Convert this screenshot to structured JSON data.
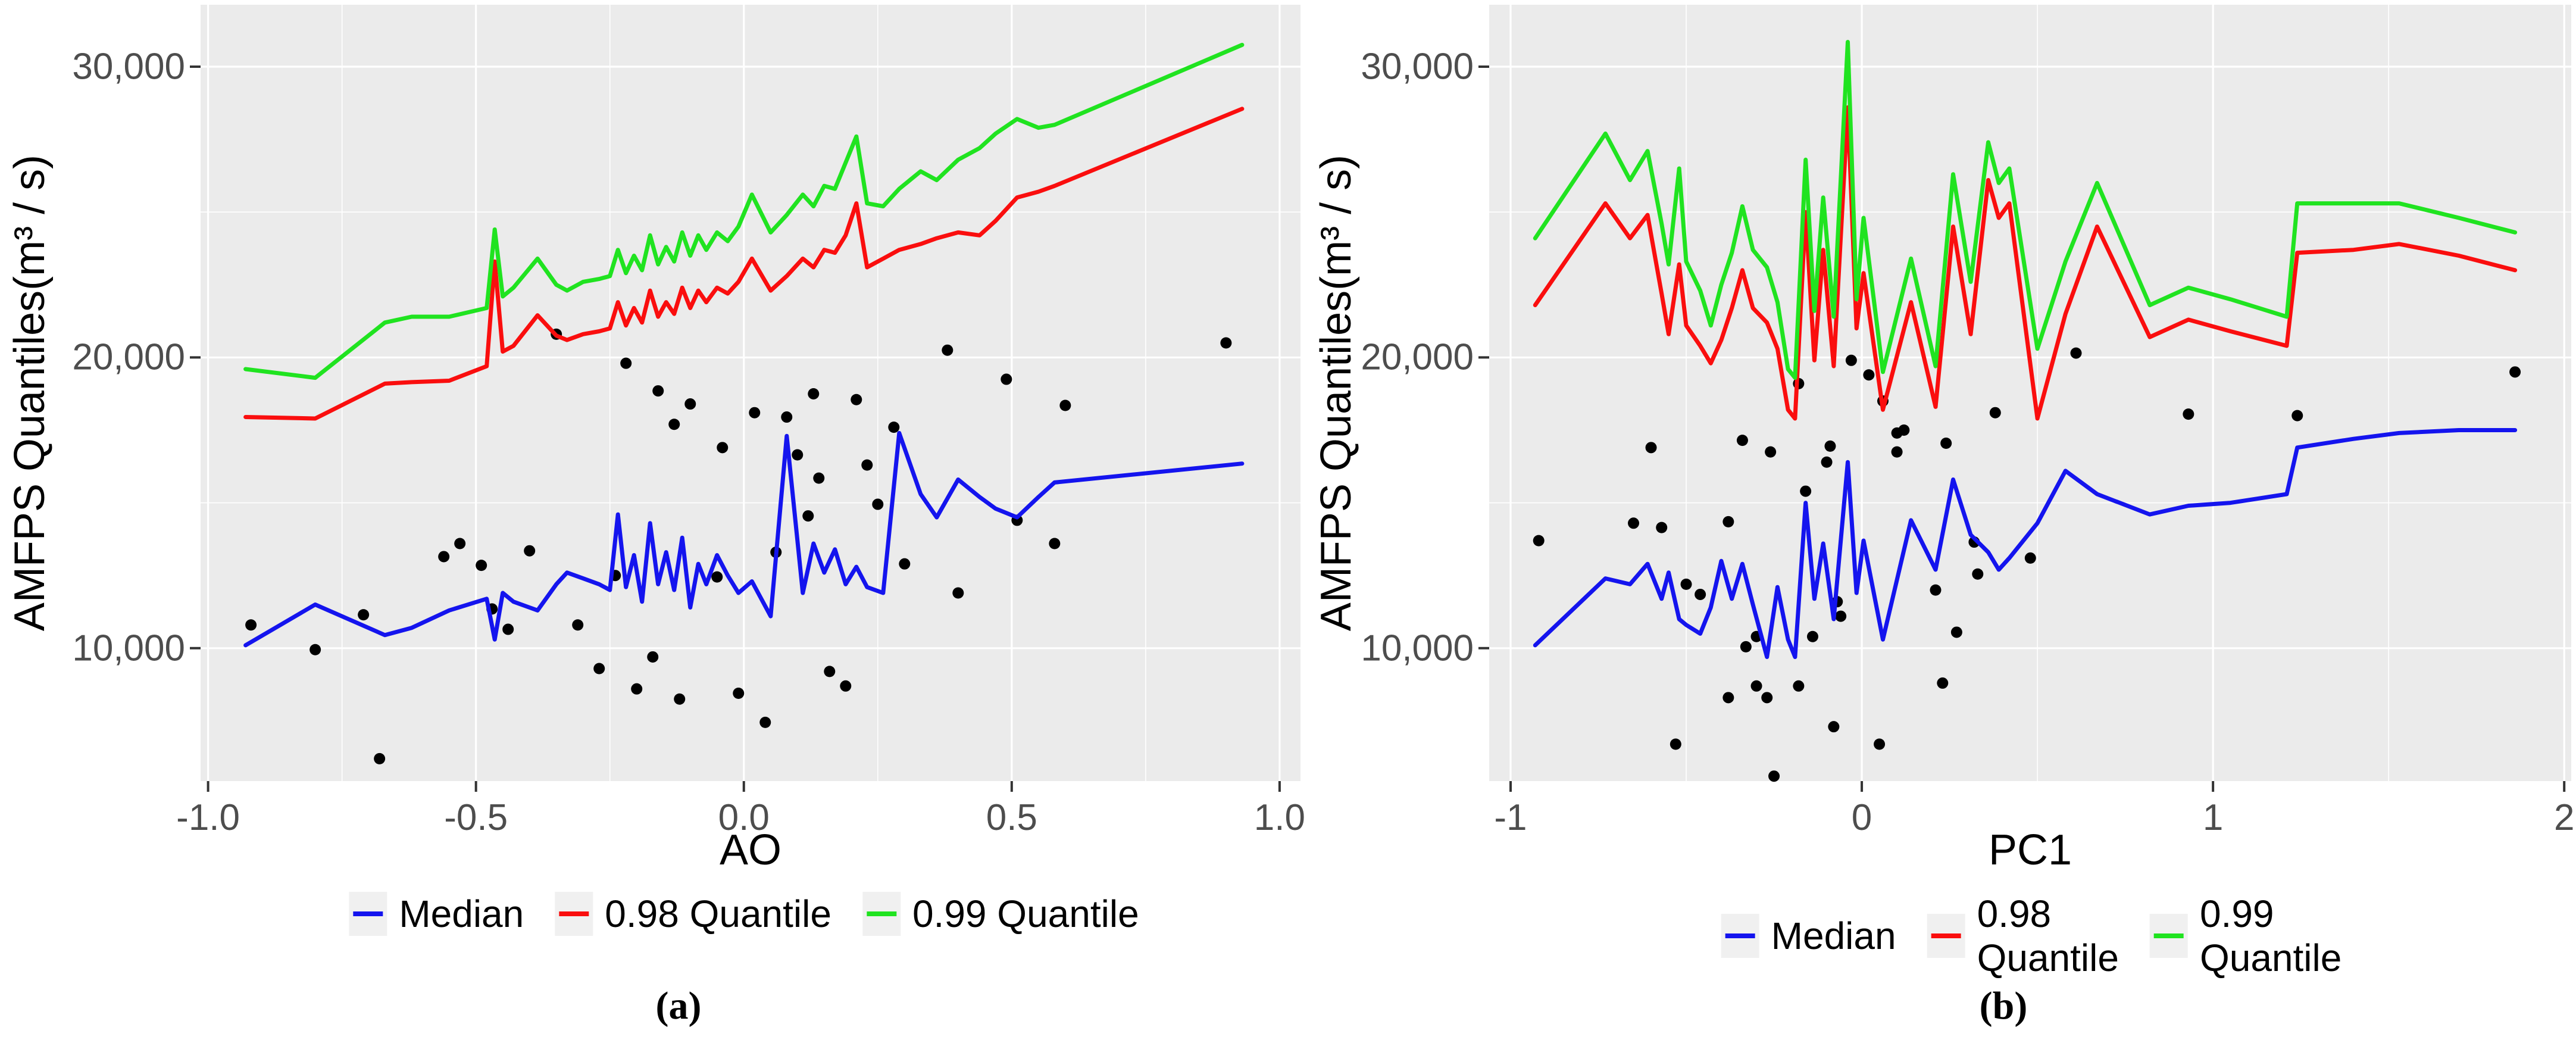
{
  "figure": {
    "panel_bg": "#ebebeb",
    "grid_color": "#ffffff",
    "tick_color": "#333333",
    "tick_label_color": "#4d4d4d",
    "point_color": "#000000",
    "ylabel": "AMFPS Quantiles(m³ / s)"
  },
  "legend": {
    "items": [
      {
        "label": "Median",
        "color": "#1414ee"
      },
      {
        "label": "0.98 Quantile",
        "color": "#fa0e0e"
      },
      {
        "label": "0.99 Quantile",
        "color": "#20e320"
      }
    ]
  },
  "panel_labels": {
    "a": "(a)",
    "b": "(b)"
  },
  "chart_data": [
    {
      "id": "a",
      "type": "line",
      "panel_label": "(a)",
      "xlabel": "AO",
      "ylabel": "AMFPS Quantiles(m³ / s)",
      "xlim": [
        -1.014,
        1.039
      ],
      "ylim": [
        5430,
        32130
      ],
      "grid": true,
      "legend_position": "bottom",
      "x_ticks": [
        {
          "v": -1.0,
          "label": "-1.0"
        },
        {
          "v": -0.5,
          "label": "-0.5"
        },
        {
          "v": 0.0,
          "label": "0.0"
        },
        {
          "v": 0.5,
          "label": "0.5"
        },
        {
          "v": 1.0,
          "label": "1.0"
        }
      ],
      "y_ticks": [
        {
          "v": 10000,
          "label": "10,000"
        },
        {
          "v": 20000,
          "label": "20,000"
        },
        {
          "v": 30000,
          "label": "30,000"
        }
      ],
      "x_minor": [
        -0.75,
        -0.25,
        0.25,
        0.75
      ],
      "y_minor": [
        15000,
        25000
      ],
      "x": [
        -0.93,
        -0.8,
        -0.67,
        -0.62,
        -0.55,
        -0.48,
        -0.465,
        -0.45,
        -0.43,
        -0.385,
        -0.35,
        -0.33,
        -0.3,
        -0.27,
        -0.25,
        -0.235,
        -0.22,
        -0.205,
        -0.19,
        -0.175,
        -0.16,
        -0.145,
        -0.13,
        -0.115,
        -0.1,
        -0.085,
        -0.07,
        -0.05,
        -0.03,
        -0.01,
        0.015,
        0.05,
        0.08,
        0.11,
        0.13,
        0.15,
        0.17,
        0.19,
        0.21,
        0.23,
        0.26,
        0.29,
        0.33,
        0.36,
        0.4,
        0.44,
        0.47,
        0.51,
        0.55,
        0.58,
        0.93
      ],
      "series": [
        {
          "name": "Median",
          "color": "#1414ee",
          "values": [
            10100,
            11500,
            10450,
            10700,
            11300,
            11700,
            10300,
            11900,
            11600,
            11300,
            12200,
            12600,
            12400,
            12200,
            12000,
            14600,
            12100,
            13200,
            11600,
            14300,
            12200,
            13300,
            12000,
            13800,
            11400,
            12900,
            12200,
            13200,
            12500,
            11900,
            12300,
            11100,
            17300,
            11900,
            13600,
            12600,
            13400,
            12200,
            12800,
            12100,
            11900,
            17400,
            15300,
            14500,
            15800,
            15200,
            14800,
            14500,
            15200,
            15700,
            16350
          ]
        },
        {
          "name": "0.98 Quantile",
          "color": "#fa0e0e",
          "values": [
            17950,
            17900,
            19100,
            19150,
            19200,
            19700,
            23300,
            20200,
            20400,
            21450,
            20750,
            20600,
            20800,
            20900,
            21000,
            21900,
            21100,
            21700,
            21200,
            22300,
            21400,
            21900,
            21500,
            22400,
            21700,
            22300,
            21900,
            22400,
            22200,
            22600,
            23400,
            22300,
            22800,
            23400,
            23100,
            23700,
            23600,
            24200,
            25300,
            23100,
            23400,
            23700,
            23900,
            24100,
            24300,
            24200,
            24700,
            25500,
            25700,
            25900,
            28550
          ]
        },
        {
          "name": "0.99 Quantile",
          "color": "#20e320",
          "values": [
            19600,
            19300,
            21200,
            21400,
            21400,
            21700,
            24400,
            22100,
            22400,
            23400,
            22500,
            22300,
            22600,
            22700,
            22800,
            23700,
            22900,
            23500,
            23000,
            24200,
            23200,
            23800,
            23300,
            24300,
            23500,
            24200,
            23700,
            24300,
            24000,
            24500,
            25600,
            24300,
            24900,
            25600,
            25200,
            25900,
            25800,
            26700,
            27600,
            25300,
            25200,
            25800,
            26400,
            26100,
            26800,
            27200,
            27700,
            28200,
            27900,
            28000,
            30750
          ]
        }
      ],
      "scatter": [
        [
          -0.92,
          10800
        ],
        [
          -0.8,
          9950
        ],
        [
          -0.71,
          11150
        ],
        [
          -0.68,
          6200
        ],
        [
          -0.56,
          13150
        ],
        [
          -0.53,
          13600
        ],
        [
          -0.49,
          12850
        ],
        [
          -0.47,
          11350
        ],
        [
          -0.44,
          10650
        ],
        [
          -0.4,
          13350
        ],
        [
          -0.35,
          20800
        ],
        [
          -0.31,
          10800
        ],
        [
          -0.27,
          9300
        ],
        [
          -0.24,
          12500
        ],
        [
          -0.22,
          19800
        ],
        [
          -0.2,
          8600
        ],
        [
          -0.17,
          9700
        ],
        [
          -0.16,
          18850
        ],
        [
          -0.13,
          17700
        ],
        [
          -0.12,
          8250
        ],
        [
          -0.1,
          18400
        ],
        [
          -0.05,
          12450
        ],
        [
          -0.04,
          16900
        ],
        [
          -0.01,
          8450
        ],
        [
          0.02,
          18100
        ],
        [
          0.04,
          7450
        ],
        [
          0.06,
          13300
        ],
        [
          0.08,
          17950
        ],
        [
          0.1,
          16650
        ],
        [
          0.12,
          14550
        ],
        [
          0.13,
          18750
        ],
        [
          0.14,
          15850
        ],
        [
          0.16,
          9200
        ],
        [
          0.19,
          8700
        ],
        [
          0.21,
          18550
        ],
        [
          0.23,
          16300
        ],
        [
          0.25,
          14950
        ],
        [
          0.28,
          17600
        ],
        [
          0.3,
          12900
        ],
        [
          0.38,
          20250
        ],
        [
          0.4,
          11900
        ],
        [
          0.49,
          19250
        ],
        [
          0.51,
          14400
        ],
        [
          0.58,
          13600
        ],
        [
          0.6,
          18350
        ],
        [
          0.9,
          20500
        ]
      ]
    },
    {
      "id": "b",
      "type": "line",
      "panel_label": "(b)",
      "xlabel": "PC1",
      "ylabel": "AMFPS Quantiles(m³ / s)",
      "xlim": [
        -1.061,
        2.02
      ],
      "ylim": [
        5430,
        32130
      ],
      "grid": true,
      "legend_position": "bottom",
      "x_ticks": [
        {
          "v": -1,
          "label": "-1"
        },
        {
          "v": 0,
          "label": "0"
        },
        {
          "v": 1,
          "label": "1"
        },
        {
          "v": 2,
          "label": "2"
        }
      ],
      "y_ticks": [
        {
          "v": 10000,
          "label": "10,000"
        },
        {
          "v": 20000,
          "label": "20,000"
        },
        {
          "v": 30000,
          "label": "30,000"
        }
      ],
      "x_minor": [
        -0.5,
        0.5,
        1.5
      ],
      "y_minor": [
        15000,
        25000
      ],
      "x": [
        -0.93,
        -0.73,
        -0.66,
        -0.61,
        -0.57,
        -0.55,
        -0.52,
        -0.5,
        -0.46,
        -0.43,
        -0.4,
        -0.37,
        -0.34,
        -0.31,
        -0.27,
        -0.24,
        -0.21,
        -0.19,
        -0.16,
        -0.135,
        -0.11,
        -0.08,
        -0.04,
        -0.015,
        0.005,
        0.06,
        0.14,
        0.21,
        0.26,
        0.31,
        0.36,
        0.39,
        0.42,
        0.5,
        0.58,
        0.67,
        0.82,
        0.93,
        1.05,
        1.21,
        1.24,
        1.4,
        1.53,
        1.7,
        1.86
      ],
      "series": [
        {
          "name": "Median",
          "color": "#1414ee",
          "values": [
            10100,
            12400,
            12200,
            12900,
            11700,
            12600,
            11000,
            10800,
            10500,
            11400,
            13000,
            11700,
            12900,
            11500,
            9700,
            12100,
            10300,
            9700,
            15000,
            11700,
            13600,
            11000,
            16400,
            11900,
            13700,
            10300,
            14400,
            12700,
            15800,
            13900,
            13300,
            12700,
            13100,
            14300,
            16100,
            15300,
            14600,
            14900,
            15000,
            15300,
            16900,
            17200,
            17400,
            17500,
            17500
          ]
        },
        {
          "name": "0.98 Quantile",
          "color": "#fa0e0e",
          "values": [
            21800,
            25300,
            24100,
            24900,
            22200,
            20800,
            23200,
            21100,
            20400,
            19800,
            20600,
            21700,
            23000,
            21700,
            21200,
            20300,
            18200,
            17900,
            25000,
            19900,
            23700,
            19700,
            28600,
            21000,
            22900,
            18200,
            21900,
            18300,
            24500,
            20800,
            26100,
            24800,
            25300,
            17900,
            21500,
            24500,
            20700,
            21300,
            20900,
            20400,
            23600,
            23700,
            23900,
            23500,
            23000
          ]
        },
        {
          "name": "0.99 Quantile",
          "color": "#20e320",
          "values": [
            24100,
            27700,
            26100,
            27100,
            24600,
            23200,
            26500,
            23300,
            22300,
            21100,
            22500,
            23600,
            25200,
            23700,
            23100,
            21900,
            19600,
            19300,
            26800,
            21600,
            25500,
            21400,
            30850,
            22000,
            24800,
            19500,
            23400,
            19700,
            26300,
            22600,
            27400,
            26000,
            26500,
            20300,
            23300,
            26000,
            21800,
            22400,
            22000,
            21400,
            25300,
            25300,
            25300,
            24800,
            24300
          ]
        }
      ],
      "scatter": [
        [
          -0.92,
          13700
        ],
        [
          -0.65,
          14300
        ],
        [
          -0.6,
          16900
        ],
        [
          -0.57,
          14150
        ],
        [
          -0.53,
          6700
        ],
        [
          -0.5,
          12200
        ],
        [
          -0.46,
          11850
        ],
        [
          -0.38,
          14350
        ],
        [
          -0.38,
          8300
        ],
        [
          -0.34,
          17150
        ],
        [
          -0.33,
          10050
        ],
        [
          -0.3,
          10400
        ],
        [
          -0.3,
          8700
        ],
        [
          -0.27,
          8300
        ],
        [
          -0.26,
          16750
        ],
        [
          -0.25,
          5600
        ],
        [
          -0.18,
          19100
        ],
        [
          -0.18,
          8700
        ],
        [
          -0.16,
          15400
        ],
        [
          -0.14,
          10400
        ],
        [
          -0.1,
          16400
        ],
        [
          -0.09,
          16950
        ],
        [
          -0.08,
          7300
        ],
        [
          -0.07,
          11600
        ],
        [
          -0.06,
          11100
        ],
        [
          -0.03,
          19900
        ],
        [
          0.02,
          19400
        ],
        [
          0.05,
          6700
        ],
        [
          0.06,
          18500
        ],
        [
          0.1,
          17400
        ],
        [
          0.1,
          16750
        ],
        [
          0.12,
          17500
        ],
        [
          0.21,
          12000
        ],
        [
          0.23,
          8800
        ],
        [
          0.24,
          17050
        ],
        [
          0.27,
          10550
        ],
        [
          0.32,
          13650
        ],
        [
          0.33,
          12550
        ],
        [
          0.38,
          18100
        ],
        [
          0.48,
          13100
        ],
        [
          0.61,
          20150
        ],
        [
          0.93,
          18050
        ],
        [
          1.24,
          18000
        ],
        [
          1.86,
          19500
        ]
      ]
    }
  ]
}
